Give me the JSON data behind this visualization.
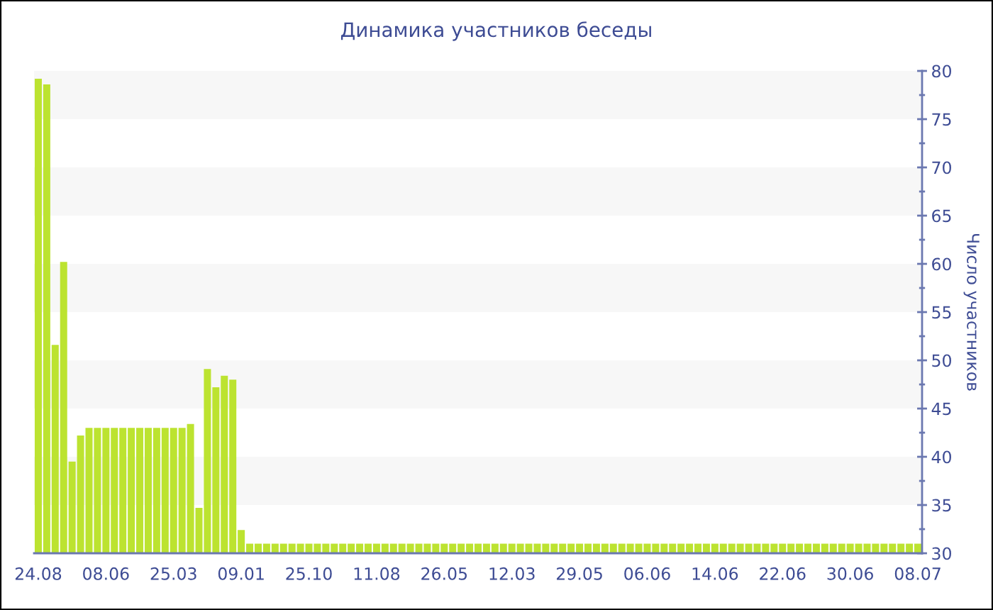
{
  "chart_data": {
    "type": "bar",
    "title": "Динамика участников беседы",
    "ylabel": "Число участников",
    "categories": [
      "24.08",
      null,
      null,
      null,
      null,
      null,
      null,
      null,
      "08.06",
      null,
      null,
      null,
      null,
      null,
      null,
      null,
      "25.03",
      null,
      null,
      null,
      null,
      null,
      null,
      null,
      "09.01",
      null,
      null,
      null,
      null,
      null,
      null,
      null,
      "25.10",
      null,
      null,
      null,
      null,
      null,
      null,
      null,
      "11.08",
      null,
      null,
      null,
      null,
      null,
      null,
      null,
      "26.05",
      null,
      null,
      null,
      null,
      null,
      null,
      null,
      "12.03",
      null,
      null,
      null,
      null,
      null,
      null,
      null,
      "29.05",
      null,
      null,
      null,
      null,
      null,
      null,
      null,
      "06.06",
      null,
      null,
      null,
      null,
      null,
      null,
      null,
      "14.06",
      null,
      null,
      null,
      null,
      null,
      null,
      null,
      "22.06",
      null,
      null,
      null,
      null,
      null,
      null,
      null,
      "30.06",
      null,
      null,
      null,
      null,
      null,
      null,
      null,
      "08.07"
    ],
    "values": [
      79.2,
      78.6,
      51.6,
      60.2,
      39.5,
      42.2,
      43,
      43,
      43,
      43,
      43,
      43,
      43,
      43,
      43,
      43,
      43,
      43,
      43.4,
      34.7,
      49.1,
      47.2,
      48.4,
      48.0,
      32.4,
      31,
      31,
      31,
      31,
      31,
      31,
      31,
      31,
      31,
      31,
      31,
      31,
      31,
      31,
      31,
      31,
      31,
      31,
      31,
      31,
      31,
      31,
      31,
      31,
      31,
      31,
      31,
      31,
      31,
      31,
      31,
      31,
      31,
      31,
      31,
      31,
      31,
      31,
      31,
      31,
      31,
      31,
      31,
      31,
      31,
      31,
      31,
      31,
      31,
      31,
      31,
      31,
      31,
      31,
      31,
      31,
      31,
      31,
      31,
      31,
      31,
      31,
      31,
      31,
      31,
      31,
      31,
      31,
      31,
      31,
      31,
      31,
      31,
      31,
      31,
      31,
      31,
      31,
      31,
      31
    ],
    "color": "#bce330",
    "ylim": [
      30,
      80
    ],
    "yticks": [
      30,
      {
        "value": 32.5,
        "label": null
      },
      35,
      {
        "value": 37.5,
        "label": null
      },
      40,
      {
        "value": 42.5,
        "label": null
      },
      45,
      {
        "value": 47.5,
        "label": null
      },
      50,
      {
        "value": 52.5,
        "label": null
      },
      55,
      {
        "value": 57.5,
        "label": null
      },
      60,
      {
        "value": 62.5,
        "label": null
      },
      65,
      {
        "value": 67.5,
        "label": null
      },
      70,
      {
        "value": 72.5,
        "label": null
      },
      75,
      {
        "value": 77.5,
        "label": null
      },
      80
    ],
    "bands": [
      {
        "axis": "y",
        "from": 35,
        "to": 40,
        "color": "#f7f7f7"
      },
      {
        "axis": "y",
        "from": 45,
        "to": 50,
        "color": "#f7f7f7"
      },
      {
        "axis": "y",
        "from": 55,
        "to": 60,
        "color": "#f7f7f7"
      },
      {
        "axis": "y",
        "from": 65,
        "to": 70,
        "color": "#f7f7f7"
      },
      {
        "axis": "y",
        "from": 75,
        "to": 80,
        "color": "#f7f7f7"
      }
    ]
  }
}
